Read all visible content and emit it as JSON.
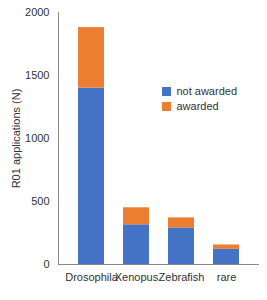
{
  "chart_data": {
    "type": "bar",
    "stacked": true,
    "y_label": "R01 applications (N)",
    "categories": [
      "Drosophila",
      "Xenopus",
      "Zebrafish",
      "rare"
    ],
    "series": [
      {
        "name": "not awarded",
        "color": "#4472c4",
        "values": [
          1400,
          315,
          290,
          120
        ]
      },
      {
        "name": "awarded",
        "color": "#ed7d31",
        "values": [
          480,
          135,
          80,
          35
        ]
      }
    ],
    "ylim": [
      0,
      2000
    ],
    "yticks": [
      0,
      500,
      1000,
      1500,
      2000
    ],
    "grid": false,
    "legend": "top-right"
  }
}
